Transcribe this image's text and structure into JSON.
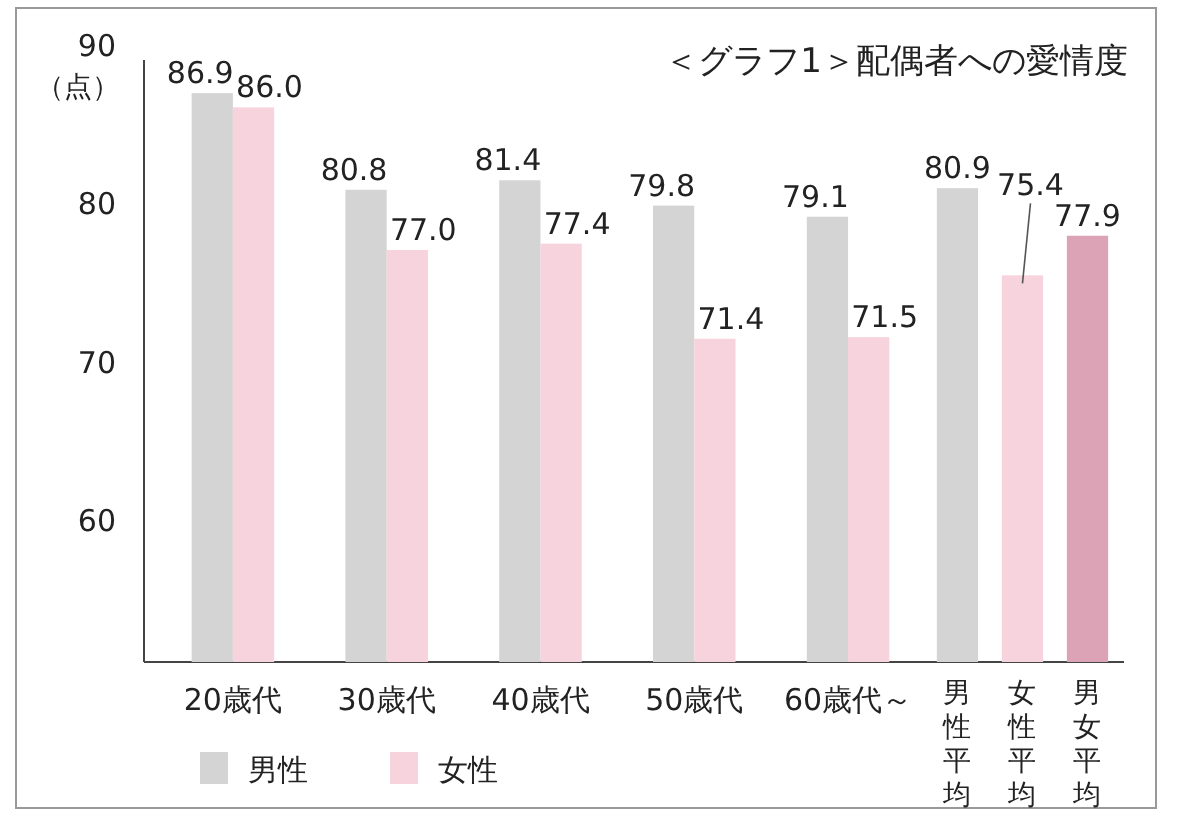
{
  "chart_data": {
    "type": "bar",
    "title": "＜グラフ1＞配偶者への愛情度",
    "ylabel": "（点）",
    "categories": [
      "20歳代",
      "30歳代",
      "40歳代",
      "50歳代",
      "60歳代～",
      "男性平均",
      "女性平均",
      "男女平均"
    ],
    "series": [
      {
        "name": "男性",
        "color": "#d4d4d4",
        "values": [
          86.9,
          80.8,
          81.4,
          79.8,
          79.1,
          80.9,
          null,
          null
        ],
        "value_labels": [
          "86.9",
          "80.8",
          "81.4",
          "79.8",
          "79.1",
          "80.9",
          null,
          null
        ]
      },
      {
        "name": "女性",
        "color": "#f7d3de",
        "values": [
          86.0,
          77.0,
          77.4,
          71.4,
          71.5,
          null,
          75.4,
          null
        ],
        "value_labels": [
          "86.0",
          "77.0",
          "77.4",
          "71.4",
          "71.5",
          null,
          "75.4",
          null
        ]
      },
      {
        "color": "#dca3b6",
        "values": [
          null,
          null,
          null,
          null,
          null,
          null,
          null,
          77.9
        ],
        "value_labels": [
          null,
          null,
          null,
          null,
          null,
          null,
          null,
          "77.9"
        ]
      }
    ],
    "ylim": [
      51,
      90
    ],
    "yticks": [
      60,
      70,
      80,
      90
    ],
    "legend": "bottom left"
  }
}
